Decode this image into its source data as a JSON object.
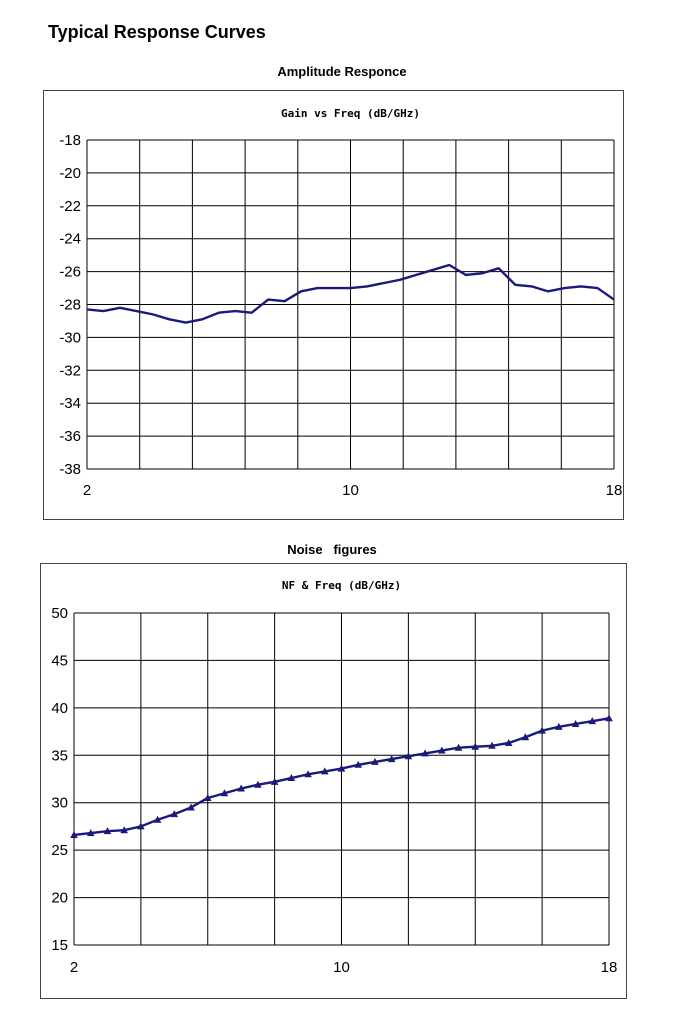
{
  "page": {
    "title": "Typical Response Curves"
  },
  "chart_data": [
    {
      "type": "line",
      "section_title": "Amplitude Responce",
      "title": "Gain vs Freq  (dB/GHz)",
      "x_ticks": [
        "2",
        "10",
        "18"
      ],
      "y_ticks": [
        "-18",
        "-20",
        "-22",
        "-24",
        "-26",
        "-28",
        "-30",
        "-32",
        "-34",
        "-36",
        "-38"
      ],
      "xlim": [
        2,
        18
      ],
      "ylim": [
        -38,
        -18
      ],
      "grid": true,
      "line_color": "#1a1a7a",
      "series": [
        {
          "x": [
            2.0,
            2.5,
            3.0,
            3.5,
            4.0,
            4.5,
            5.0,
            5.5,
            6.0,
            6.5,
            7.0,
            7.5,
            8.0,
            8.5,
            9.0,
            9.5,
            10.0,
            10.5,
            11.0,
            11.5,
            12.0,
            12.5,
            13.0,
            13.5,
            14.0,
            14.5,
            15.0,
            15.5,
            16.0,
            16.5,
            17.0,
            17.5,
            18.0
          ],
          "y": [
            -28.3,
            -28.4,
            -28.2,
            -28.4,
            -28.6,
            -28.9,
            -29.1,
            -28.9,
            -28.5,
            -28.4,
            -28.5,
            -27.7,
            -27.8,
            -27.2,
            -27.0,
            -27.0,
            -27.0,
            -26.9,
            -26.7,
            -26.5,
            -26.2,
            -25.9,
            -25.6,
            -26.2,
            -26.1,
            -25.8,
            -26.8,
            -26.9,
            -27.2,
            -27.0,
            -26.9,
            -27.0,
            -27.7
          ]
        }
      ]
    },
    {
      "type": "line",
      "section_title": "Noise   figures",
      "title": "NF & Freq  (dB/GHz)",
      "x_ticks": [
        "2",
        "10",
        "18"
      ],
      "y_ticks": [
        "50",
        "45",
        "40",
        "35",
        "30",
        "25",
        "20",
        "15"
      ],
      "xlim": [
        2,
        18
      ],
      "ylim": [
        15,
        50
      ],
      "grid": true,
      "line_color": "#1a1a7a",
      "marker": "triangle",
      "series": [
        {
          "x": [
            2.0,
            2.5,
            3.0,
            3.5,
            4.0,
            4.5,
            5.0,
            5.5,
            6.0,
            6.5,
            7.0,
            7.5,
            8.0,
            8.5,
            9.0,
            9.5,
            10.0,
            10.5,
            11.0,
            11.5,
            12.0,
            12.5,
            13.0,
            13.5,
            14.0,
            14.5,
            15.0,
            15.5,
            16.0,
            16.5,
            17.0,
            17.5,
            18.0
          ],
          "y": [
            26.6,
            26.8,
            27.0,
            27.1,
            27.5,
            28.2,
            28.8,
            29.5,
            30.5,
            31.0,
            31.5,
            31.9,
            32.2,
            32.6,
            33.0,
            33.3,
            33.6,
            34.0,
            34.3,
            34.6,
            34.9,
            35.2,
            35.5,
            35.8,
            35.9,
            36.0,
            36.3,
            36.9,
            37.6,
            38.0,
            38.3,
            38.6,
            38.9
          ]
        }
      ]
    }
  ]
}
